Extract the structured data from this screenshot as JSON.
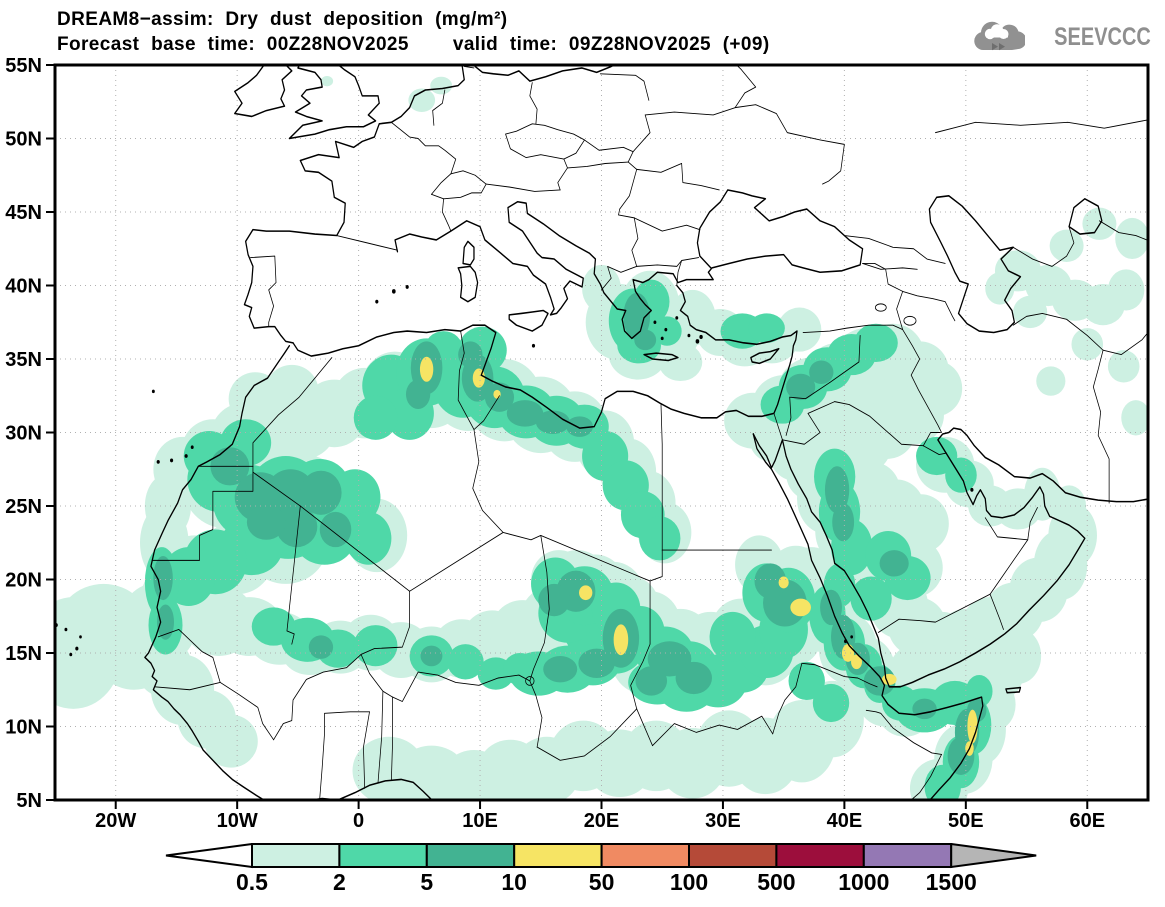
{
  "header": {
    "title_line1": "DREAM8−assim: Dry dust deposition (mg/m²)",
    "forecast_base_label": "Forecast base time: 00Z28NOV2025",
    "valid_time_label": "valid time: 09Z28NOV2025 (+09)"
  },
  "logo": {
    "text": "SEEVCCC",
    "icon": "cloud-icon",
    "color": "#8f8f8f"
  },
  "map": {
    "lat_axis": [
      {
        "text": "55N",
        "lat": 55
      },
      {
        "text": "50N",
        "lat": 50
      },
      {
        "text": "45N",
        "lat": 45
      },
      {
        "text": "40N",
        "lat": 40
      },
      {
        "text": "35N",
        "lat": 35
      },
      {
        "text": "30N",
        "lat": 30
      },
      {
        "text": "25N",
        "lat": 25
      },
      {
        "text": "20N",
        "lat": 20
      },
      {
        "text": "15N",
        "lat": 15
      },
      {
        "text": "10N",
        "lat": 10
      },
      {
        "text": "5N",
        "lat": 5
      }
    ],
    "lon_axis": [
      {
        "text": "20W",
        "lon": -20
      },
      {
        "text": "10W",
        "lon": -10
      },
      {
        "text": "0",
        "lon": 0
      },
      {
        "text": "10E",
        "lon": 10
      },
      {
        "text": "20E",
        "lon": 20
      },
      {
        "text": "30E",
        "lon": 30
      },
      {
        "text": "40E",
        "lon": 40
      },
      {
        "text": "50E",
        "lon": 50
      },
      {
        "text": "60E",
        "lon": 60
      }
    ]
  },
  "colorbar": {
    "labels": [
      "0.5",
      "2",
      "5",
      "10",
      "50",
      "100",
      "500",
      "1000",
      "1500"
    ],
    "colors": [
      "#cdf0e2",
      "#4fd8a8",
      "#42b392",
      "#f6e464",
      "#f08a62",
      "#b54a38",
      "#9c0e3c",
      "#9478b4"
    ],
    "under_color": "#ffffff",
    "over_color": "#b5b5b5"
  }
}
